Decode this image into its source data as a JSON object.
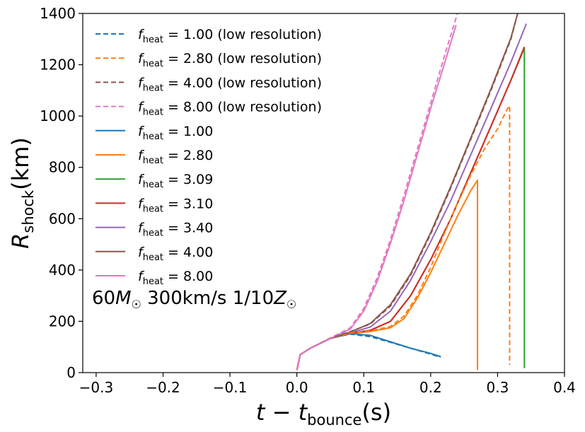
{
  "chart_data": {
    "type": "line",
    "title": "",
    "xlabel": "t - t_bounce(s)",
    "xlabel_parts": {
      "var": "t",
      "minus": " − ",
      "var2": "t",
      "sub": "bounce",
      "unit": "(s)"
    },
    "ylabel": "R_shock(km)",
    "ylabel_parts": {
      "var": "R",
      "sub": "shock",
      "unit": "(km)"
    },
    "xlim": [
      -0.32,
      0.4
    ],
    "ylim": [
      0,
      1400
    ],
    "xticks": [
      -0.3,
      -0.2,
      -0.1,
      0.0,
      0.1,
      0.2,
      0.3,
      0.4
    ],
    "xtick_labels": [
      "−0.3",
      "−0.2",
      "−0.1",
      "0.0",
      "0.1",
      "0.2",
      "0.3",
      "0.4"
    ],
    "yticks": [
      0,
      200,
      400,
      600,
      800,
      1000,
      1200,
      1400
    ],
    "ytick_labels": [
      "0",
      "200",
      "400",
      "600",
      "800",
      "1000",
      "1200",
      "1400"
    ],
    "grid": false,
    "legend_position": "top-left",
    "annotation": {
      "mass": "60",
      "msun": "M",
      "rest": " 300km/s 1/10",
      "z": "Z"
    },
    "series": [
      {
        "name": "f_heat = 1.00 (low resolution)",
        "value": "1.00",
        "suffix": " (low resolution)",
        "color": "#1f77b4",
        "dashed": true,
        "x": [
          0.0,
          0.005,
          0.02,
          0.05,
          0.08,
          0.11,
          0.14,
          0.17,
          0.2,
          0.215
        ],
        "y": [
          10,
          70,
          95,
          135,
          150,
          140,
          118,
          95,
          72,
          60
        ]
      },
      {
        "name": "f_heat = 2.80 (low resolution)",
        "value": "2.80",
        "suffix": " (low resolution)",
        "color": "#ff7f0e",
        "dashed": true,
        "x": [
          0.0,
          0.005,
          0.02,
          0.05,
          0.08,
          0.11,
          0.14,
          0.16,
          0.18,
          0.2,
          0.22,
          0.24,
          0.26,
          0.28,
          0.3,
          0.315,
          0.318,
          0.318
        ],
        "y": [
          10,
          70,
          95,
          135,
          155,
          163,
          180,
          220,
          300,
          410,
          540,
          660,
          770,
          870,
          950,
          1030,
          1040,
          30
        ]
      },
      {
        "name": "f_heat = 4.00 (low resolution)",
        "value": "4.00",
        "suffix": " (low resolution)",
        "color": "#8c564b",
        "dashed": true,
        "x": [
          0.0,
          0.005,
          0.02,
          0.05,
          0.08,
          0.11,
          0.14,
          0.17,
          0.2,
          0.23,
          0.26,
          0.29,
          0.32,
          0.33
        ],
        "y": [
          10,
          70,
          95,
          135,
          160,
          190,
          260,
          380,
          540,
          720,
          910,
          1100,
          1300,
          1400
        ]
      },
      {
        "name": "f_heat = 8.00 (low resolution)",
        "value": "8.00",
        "suffix": " (low resolution)",
        "color": "#e377c2",
        "dashed": true,
        "x": [
          0.0,
          0.005,
          0.02,
          0.05,
          0.08,
          0.1,
          0.12,
          0.14,
          0.16,
          0.18,
          0.2,
          0.22,
          0.24
        ],
        "y": [
          10,
          70,
          95,
          135,
          175,
          250,
          370,
          520,
          690,
          870,
          1050,
          1230,
          1400
        ]
      },
      {
        "name": "f_heat = 1.00",
        "value": "1.00",
        "suffix": "",
        "color": "#1f77b4",
        "dashed": false,
        "x": [
          0.0,
          0.005,
          0.02,
          0.05,
          0.08,
          0.11,
          0.14,
          0.17,
          0.2,
          0.215
        ],
        "y": [
          10,
          70,
          95,
          133,
          152,
          145,
          120,
          95,
          75,
          62
        ]
      },
      {
        "name": "f_heat = 2.80",
        "value": "2.80",
        "suffix": "",
        "color": "#ff7f0e",
        "dashed": false,
        "x": [
          0.0,
          0.005,
          0.02,
          0.05,
          0.08,
          0.11,
          0.14,
          0.16,
          0.18,
          0.2,
          0.22,
          0.24,
          0.26,
          0.27,
          0.27
        ],
        "y": [
          10,
          70,
          95,
          133,
          152,
          160,
          175,
          210,
          290,
          390,
          500,
          610,
          710,
          750,
          10
        ]
      },
      {
        "name": "f_heat = 3.09",
        "value": "3.09",
        "suffix": "",
        "color": "#2ca02c",
        "dashed": false,
        "x": [
          0.0,
          0.005,
          0.02,
          0.05,
          0.08,
          0.11,
          0.14,
          0.17,
          0.2,
          0.23,
          0.26,
          0.29,
          0.32,
          0.34,
          0.34,
          0.341
        ],
        "y": [
          10,
          70,
          95,
          133,
          153,
          165,
          200,
          300,
          440,
          600,
          780,
          960,
          1140,
          1265,
          20,
          20
        ]
      },
      {
        "name": "f_heat = 3.10",
        "value": "3.10",
        "suffix": "",
        "color": "#d62728",
        "dashed": false,
        "x": [
          0.0,
          0.005,
          0.02,
          0.05,
          0.08,
          0.11,
          0.14,
          0.17,
          0.2,
          0.23,
          0.26,
          0.29,
          0.32,
          0.34
        ],
        "y": [
          10,
          70,
          95,
          133,
          153,
          165,
          200,
          300,
          440,
          600,
          780,
          960,
          1140,
          1270
        ]
      },
      {
        "name": "f_heat = 3.40",
        "value": "3.40",
        "suffix": "",
        "color": "#9467bd",
        "dashed": false,
        "x": [
          0.0,
          0.005,
          0.02,
          0.05,
          0.08,
          0.11,
          0.14,
          0.17,
          0.2,
          0.23,
          0.26,
          0.29,
          0.32,
          0.343
        ],
        "y": [
          10,
          70,
          95,
          133,
          155,
          178,
          240,
          360,
          510,
          670,
          850,
          1030,
          1210,
          1360
        ]
      },
      {
        "name": "f_heat = 4.00",
        "value": "4.00",
        "suffix": "",
        "color": "#8c564b",
        "dashed": false,
        "x": [
          0.0,
          0.005,
          0.02,
          0.05,
          0.08,
          0.11,
          0.14,
          0.17,
          0.2,
          0.23,
          0.26,
          0.29,
          0.32,
          0.33
        ],
        "y": [
          10,
          70,
          95,
          133,
          158,
          192,
          265,
          385,
          545,
          725,
          915,
          1105,
          1305,
          1400
        ]
      },
      {
        "name": "f_heat = 8.00",
        "value": "8.00",
        "suffix": "",
        "color": "#e377c2",
        "dashed": false,
        "x": [
          0.0,
          0.005,
          0.02,
          0.05,
          0.08,
          0.1,
          0.12,
          0.14,
          0.16,
          0.18,
          0.2,
          0.22,
          0.238
        ],
        "y": [
          10,
          70,
          95,
          133,
          170,
          240,
          355,
          505,
          670,
          850,
          1030,
          1200,
          1355
        ]
      }
    ]
  }
}
